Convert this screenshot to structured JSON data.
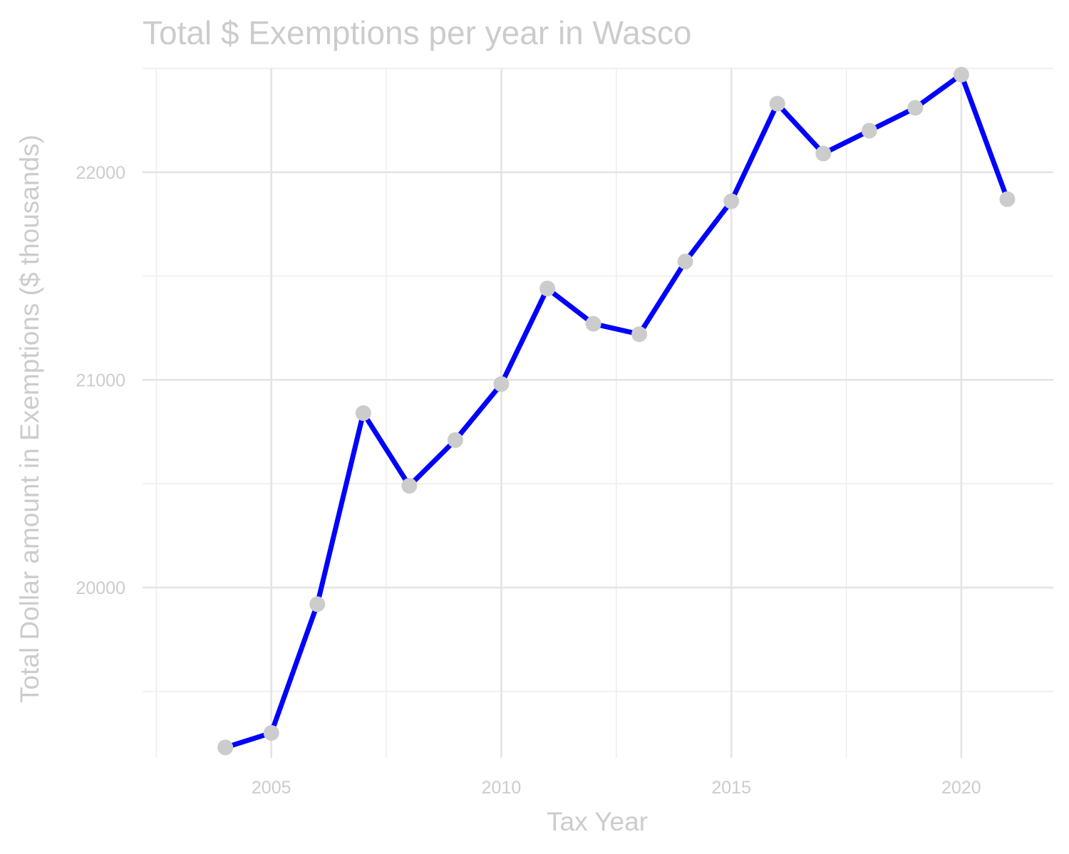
{
  "chart_data": {
    "type": "line",
    "title": "Total $ Exemptions per year in Wasco",
    "xlabel": "Tax Year",
    "ylabel": "Total Dollar amount in Exemptions ($ thousands)",
    "x": [
      2004,
      2005,
      2006,
      2007,
      2008,
      2009,
      2010,
      2011,
      2012,
      2013,
      2014,
      2015,
      2016,
      2017,
      2018,
      2019,
      2020,
      2021
    ],
    "series": [
      {
        "values": [
          19230,
          19300,
          19920,
          20840,
          20490,
          20710,
          20980,
          21440,
          21270,
          21220,
          21570,
          21860,
          22330,
          22090,
          22200,
          22310,
          22470,
          21870
        ]
      }
    ],
    "xlim": [
      2002.2,
      2022.0
    ],
    "ylim": [
      19180,
      22500
    ],
    "x_ticks": [
      2005,
      2010,
      2015,
      2020
    ],
    "x_tick_labels": [
      "2005",
      "2010",
      "2015",
      "2020"
    ],
    "y_ticks": [
      20000,
      21000,
      22000
    ],
    "y_tick_labels": [
      "20000",
      "21000",
      "22000"
    ],
    "grid": true,
    "line_color": "#0000ff",
    "point_color": "#cccccc",
    "text_color": "#cccccc",
    "grid_color": "#e4e4e4"
  }
}
